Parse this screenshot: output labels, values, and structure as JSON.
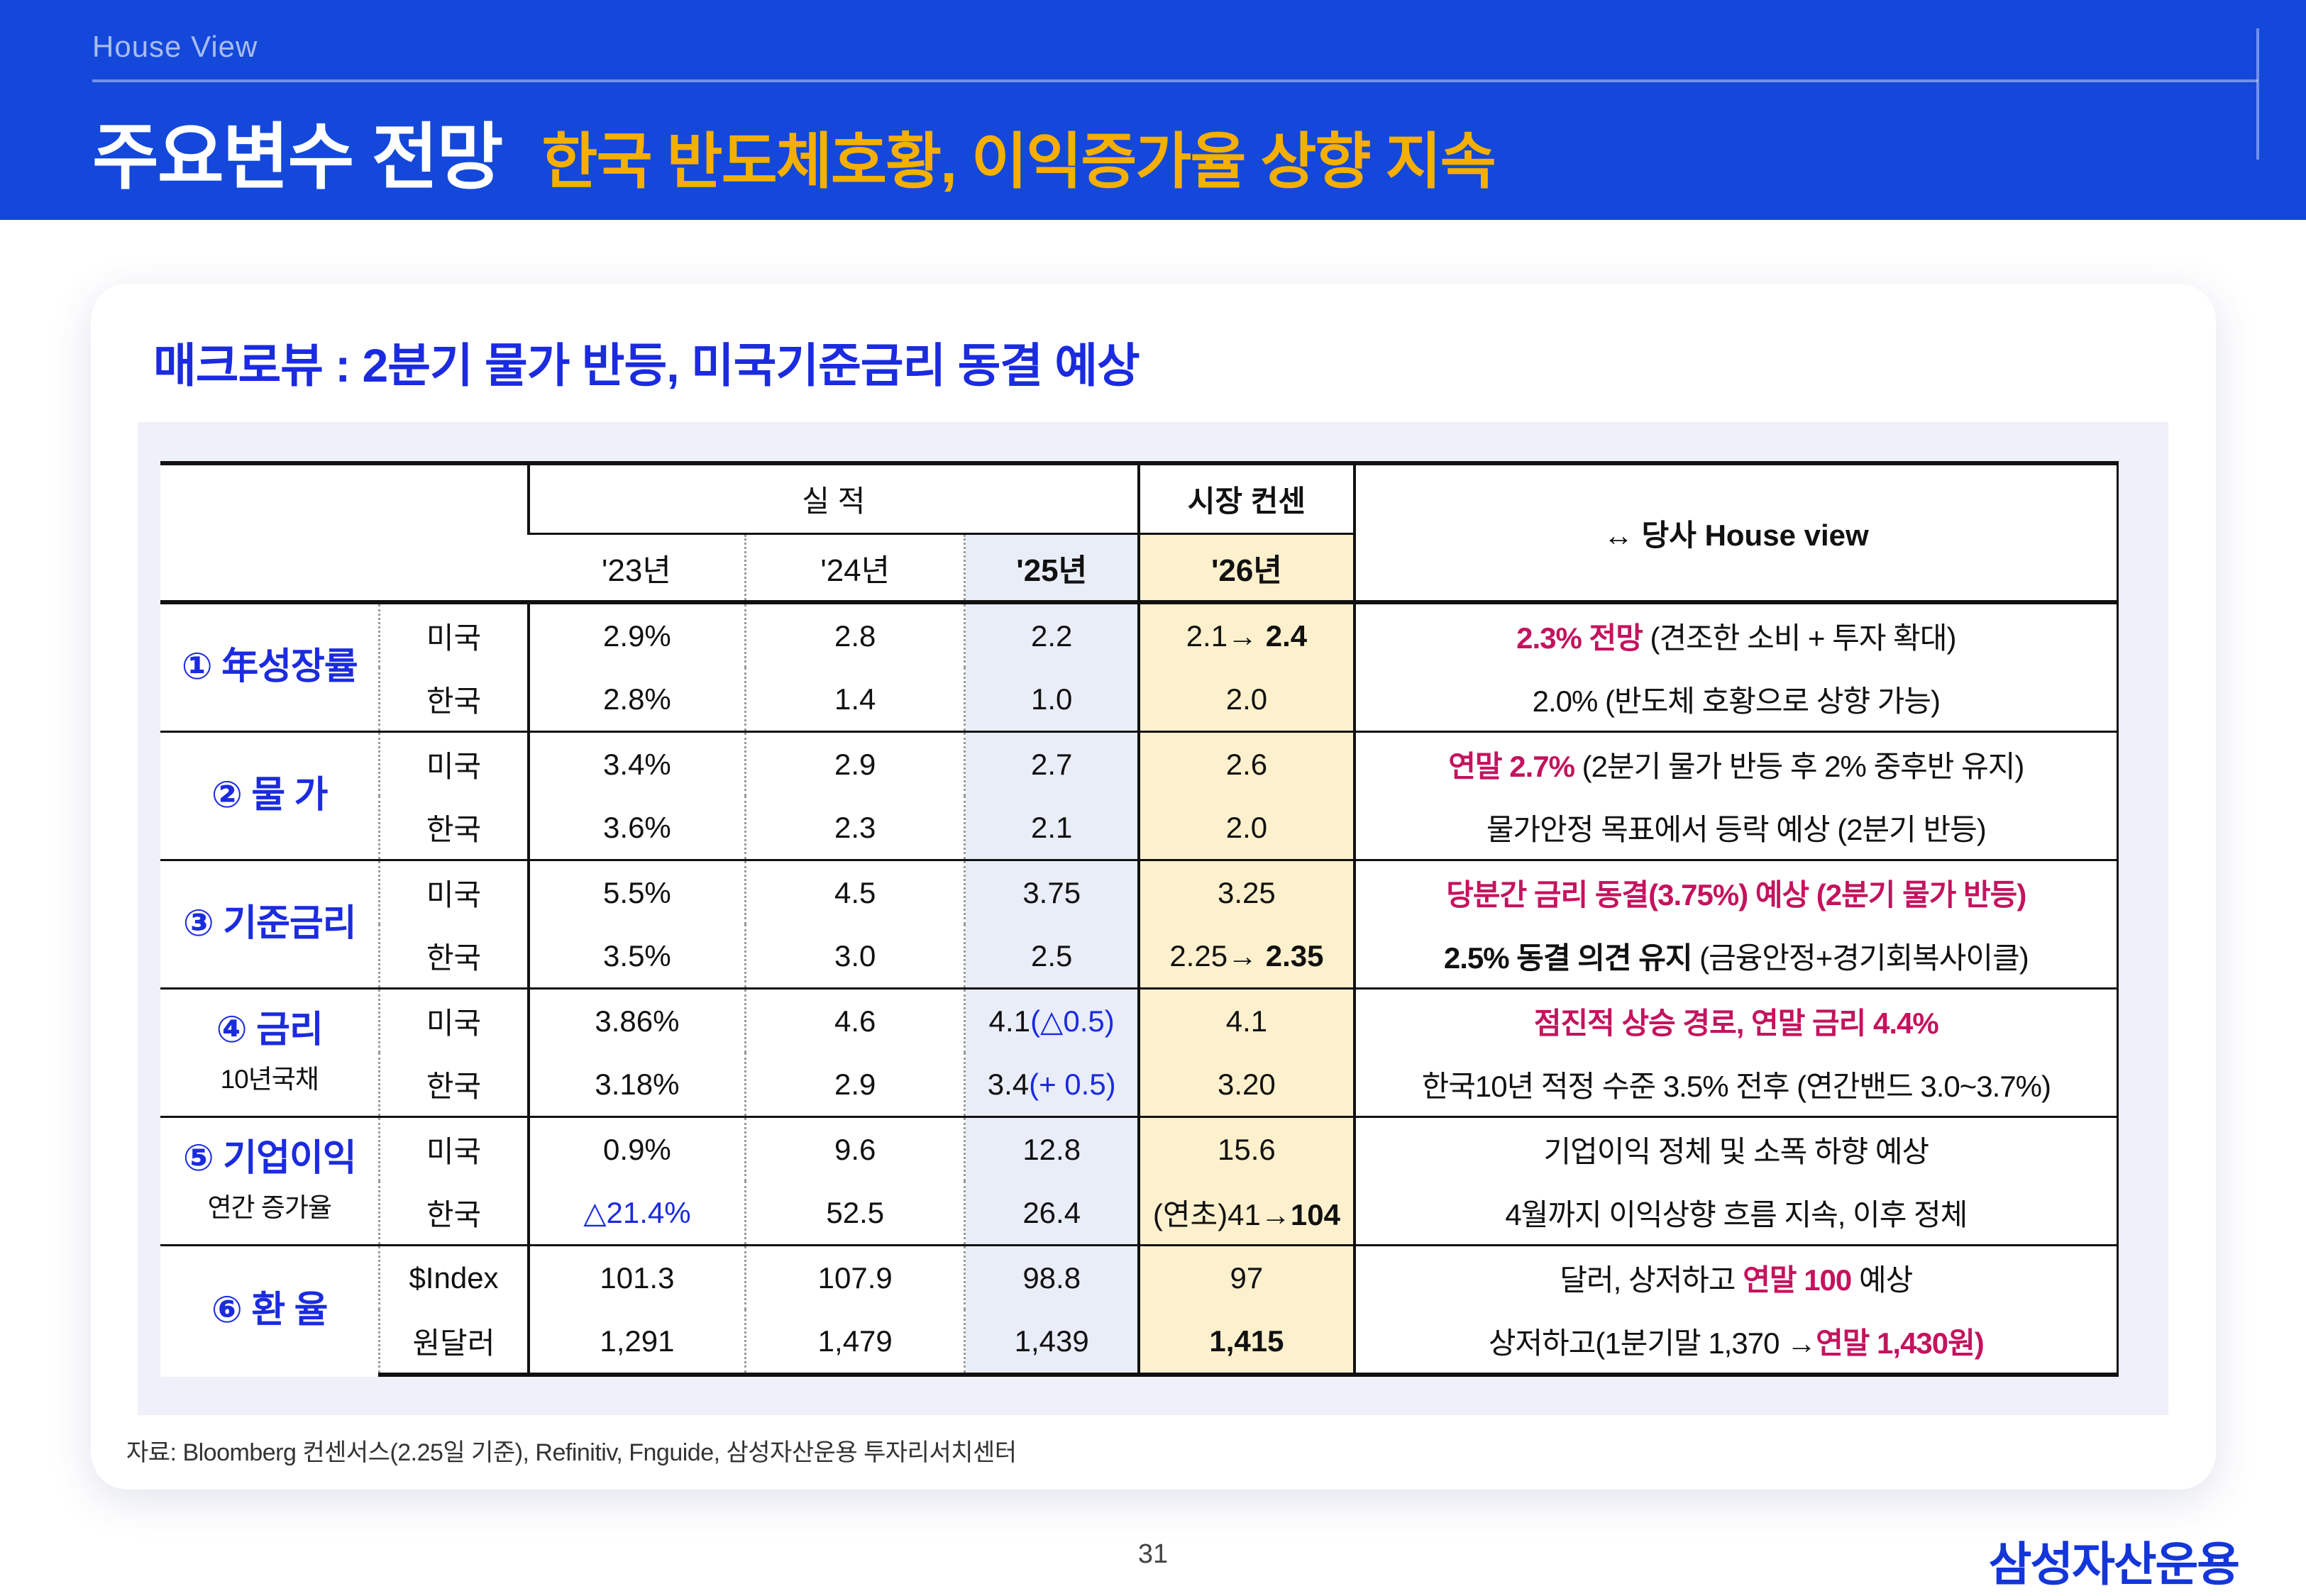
{
  "page": {
    "eyebrow": "House View",
    "title": "주요변수 전망",
    "subtitle": "한국 반도체호황, 이익증가율 상향 지속",
    "source": "자료: Bloomberg 컨센서스(2.25일 기준), Refinitiv, Fnguide, 삼성자산운용 투자리서치센터",
    "page_number": "31",
    "logo": "삼성자산운용"
  },
  "card": {
    "heading": "매크로뷰 : 2분기 물가 반등, 미국기준금리 동결 예상"
  },
  "colors": {
    "banner_blue": "#1448DB",
    "accent_yellow": "#F5AF00",
    "heading_blue": "#1B2BDF",
    "highlight_pink": "#C4135E",
    "col25_bg": "#E9EDF8",
    "col26_bg": "#FDF0CD",
    "panel_bg": "#EEF1F9"
  },
  "table": {
    "group_headers": {
      "actual": "실 적",
      "consensus": "시장 컨센",
      "house_view": "↔ 당사 House view"
    },
    "year_headers": [
      "'23년",
      "'24년",
      "'25년",
      "'26년"
    ],
    "rows": [
      {
        "label": "① 年성장률",
        "sublabel": "",
        "entries": [
          {
            "country": "미국",
            "y23": [
              {
                "t": "2.9%"
              }
            ],
            "y24": [
              {
                "t": "2.8"
              }
            ],
            "y25": [
              {
                "t": "2.2"
              }
            ],
            "y26": [
              {
                "t": "2.1→ "
              },
              {
                "t": "2.4",
                "b": true
              }
            ],
            "view": [
              {
                "t": "2.3% 전망",
                "c": "pink"
              },
              {
                "t": " (견조한 소비 + 투자 확대)"
              }
            ]
          },
          {
            "country": "한국",
            "y23": [
              {
                "t": "2.8%"
              }
            ],
            "y24": [
              {
                "t": "1.4"
              }
            ],
            "y25": [
              {
                "t": "1.0"
              }
            ],
            "y26": [
              {
                "t": "2.0"
              }
            ],
            "view": [
              {
                "t": "2.0%"
              },
              {
                "t": " (반도체 호황으로 상향 가능)"
              }
            ]
          }
        ]
      },
      {
        "label": "② 물 가",
        "sublabel": "",
        "entries": [
          {
            "country": "미국",
            "y23": [
              {
                "t": "3.4%"
              }
            ],
            "y24": [
              {
                "t": "2.9"
              }
            ],
            "y25": [
              {
                "t": "2.7"
              }
            ],
            "y26": [
              {
                "t": "2.6"
              }
            ],
            "view": [
              {
                "t": "연말 2.7%",
                "c": "pink"
              },
              {
                "t": " (2분기 물가 반등 후 2% 중후반 유지)"
              }
            ]
          },
          {
            "country": "한국",
            "y23": [
              {
                "t": "3.6%"
              }
            ],
            "y24": [
              {
                "t": "2.3"
              }
            ],
            "y25": [
              {
                "t": "2.1"
              }
            ],
            "y26": [
              {
                "t": "2.0"
              }
            ],
            "view": [
              {
                "t": "물가안정 목표에서 등락 예상 (2분기 반등)"
              }
            ]
          }
        ]
      },
      {
        "label": "③ 기준금리",
        "sublabel": "",
        "entries": [
          {
            "country": "미국",
            "y23": [
              {
                "t": "5.5%"
              }
            ],
            "y24": [
              {
                "t": "4.5"
              }
            ],
            "y25": [
              {
                "t": "3.75"
              }
            ],
            "y26": [
              {
                "t": "3.25"
              }
            ],
            "view": [
              {
                "t": "당분간 금리 동결(3.75%) 예상 (2분기 물가 반등)",
                "c": "pink"
              }
            ]
          },
          {
            "country": "한국",
            "y23": [
              {
                "t": "3.5%"
              }
            ],
            "y24": [
              {
                "t": "3.0"
              }
            ],
            "y25": [
              {
                "t": "2.5"
              }
            ],
            "y26": [
              {
                "t": "2.25→ "
              },
              {
                "t": "2.35",
                "b": true
              }
            ],
            "view": [
              {
                "t": "2.5% 동결 의견 유지",
                "b": true
              },
              {
                "t": " (금융안정+경기회복사이클)"
              }
            ]
          }
        ]
      },
      {
        "label": "④ 금리",
        "sublabel": "10년국채",
        "entries": [
          {
            "country": "미국",
            "y23": [
              {
                "t": "3.86%"
              }
            ],
            "y24": [
              {
                "t": "4.6"
              }
            ],
            "y25": [
              {
                "t": "4.1"
              },
              {
                "t": "(△0.5)",
                "c": "blue"
              }
            ],
            "y26": [
              {
                "t": "4.1"
              }
            ],
            "view": [
              {
                "t": "점진적 상승 경로, 연말 금리 4.4%",
                "c": "pink"
              }
            ]
          },
          {
            "country": "한국",
            "y23": [
              {
                "t": "3.18%"
              }
            ],
            "y24": [
              {
                "t": "2.9"
              }
            ],
            "y25": [
              {
                "t": "3.4"
              },
              {
                "t": "(+ 0.5)",
                "c": "blue"
              }
            ],
            "y26": [
              {
                "t": "3.20"
              }
            ],
            "view": [
              {
                "t": "한국10년 적정 수준 3.5% 전후 (연간밴드 3.0~3.7%)"
              }
            ]
          }
        ]
      },
      {
        "label": "⑤ 기업이익",
        "sublabel": "연간 증가율",
        "entries": [
          {
            "country": "미국",
            "y23": [
              {
                "t": "0.9%"
              }
            ],
            "y24": [
              {
                "t": "9.6"
              }
            ],
            "y25": [
              {
                "t": "12.8"
              }
            ],
            "y26": [
              {
                "t": "15.6"
              }
            ],
            "view": [
              {
                "t": "기업이익 정체 및 소폭 하향 예상"
              }
            ]
          },
          {
            "country": "한국",
            "y23": [
              {
                "t": "△21.4%",
                "c": "blue"
              }
            ],
            "y24": [
              {
                "t": "52.5"
              }
            ],
            "y25": [
              {
                "t": "26.4"
              }
            ],
            "y26": [
              {
                "t": "(연초)41→"
              },
              {
                "t": "104",
                "b": true
              }
            ],
            "view": [
              {
                "t": "4월까지 이익상향 흐름 지속, 이후 정체"
              }
            ]
          }
        ]
      },
      {
        "label": "⑥ 환 율",
        "sublabel": "",
        "entries": [
          {
            "country": "$Index",
            "y23": [
              {
                "t": "101.3"
              }
            ],
            "y24": [
              {
                "t": "107.9"
              }
            ],
            "y25": [
              {
                "t": "98.8"
              }
            ],
            "y26": [
              {
                "t": "97"
              }
            ],
            "view": [
              {
                "t": "달러, 상저하고 "
              },
              {
                "t": "연말 100",
                "c": "pink"
              },
              {
                "t": " 예상"
              }
            ]
          },
          {
            "country": "원달러",
            "y23": [
              {
                "t": "1,291"
              }
            ],
            "y24": [
              {
                "t": "1,479"
              }
            ],
            "y25": [
              {
                "t": "1,439"
              }
            ],
            "y26": [
              {
                "t": "1,415",
                "b": true
              }
            ],
            "view": [
              {
                "t": "상저하고(1분기말 1,370 →"
              },
              {
                "t": "연말 1,430원)",
                "c": "pink"
              }
            ]
          }
        ]
      }
    ]
  }
}
